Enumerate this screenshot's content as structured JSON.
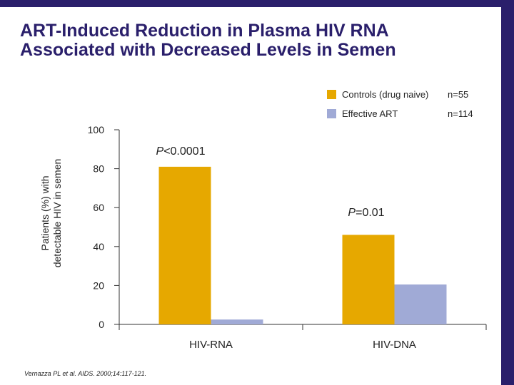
{
  "title": {
    "line1": "ART-Induced Reduction in Plasma HIV RNA",
    "line2": "Associated with Decreased Levels in Semen"
  },
  "citation": "Vernazza PL et al. AIDS. 2000;14:117-121.",
  "colors": {
    "frame": "#2a1f6b",
    "controls": "#e6a800",
    "effective_art": "#a0aad6"
  },
  "chart_data": {
    "type": "bar",
    "categories": [
      "HIV-RNA",
      "HIV-DNA"
    ],
    "series": [
      {
        "name": "Controls (drug naive)",
        "n_label": "n=55",
        "values": [
          81,
          46
        ]
      },
      {
        "name": "Effective ART",
        "n_label": "n=114",
        "values": [
          2.5,
          20.5
        ]
      }
    ],
    "ylabel_line1": "Patients (%) with",
    "ylabel_line2": "detectable HIV in semen",
    "ylim": [
      0,
      100
    ],
    "yticks": [
      "0",
      "20",
      "40",
      "60",
      "80",
      "100"
    ],
    "annotations": [
      {
        "category": "HIV-RNA",
        "italic": "P",
        "text": "<0.0001"
      },
      {
        "category": "HIV-DNA",
        "italic": "P",
        "text": "=0.01"
      }
    ],
    "legend_position": "top-right",
    "grid": false
  }
}
